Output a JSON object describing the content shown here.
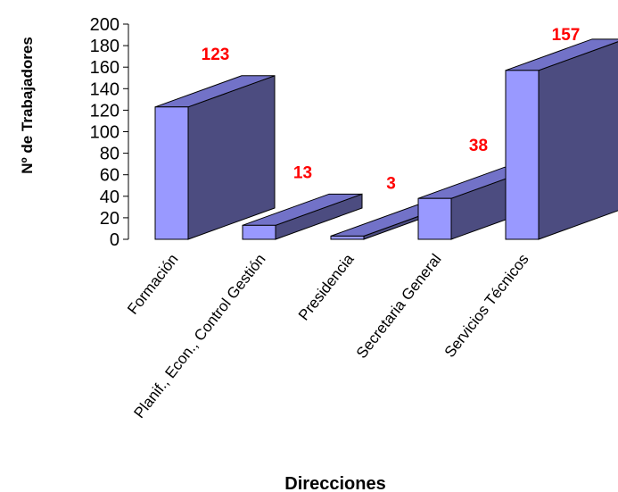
{
  "chart_data": {
    "type": "bar",
    "style": "3d",
    "categories": [
      "Formación",
      "Planif., Econ., Control Gestión",
      "Presidencia",
      "Secretaria General",
      "Servicios Técnicos"
    ],
    "values": [
      123,
      13,
      3,
      38,
      157
    ],
    "data_labels": [
      "123",
      "13",
      "3",
      "38",
      "157"
    ],
    "xlabel": "Direcciones",
    "ylabel": "Nº de Trabajadores",
    "ylim": [
      0,
      200
    ],
    "yticks": [
      0,
      20,
      40,
      60,
      80,
      100,
      120,
      140,
      160,
      180,
      200
    ],
    "grid": false,
    "legend": "none",
    "colors": {
      "bar_front": "#9999ff",
      "bar_side": "#4c4c80",
      "bar_top": "#7272c8",
      "bar_stroke": "#000000",
      "data_label": "#ff0000"
    }
  }
}
